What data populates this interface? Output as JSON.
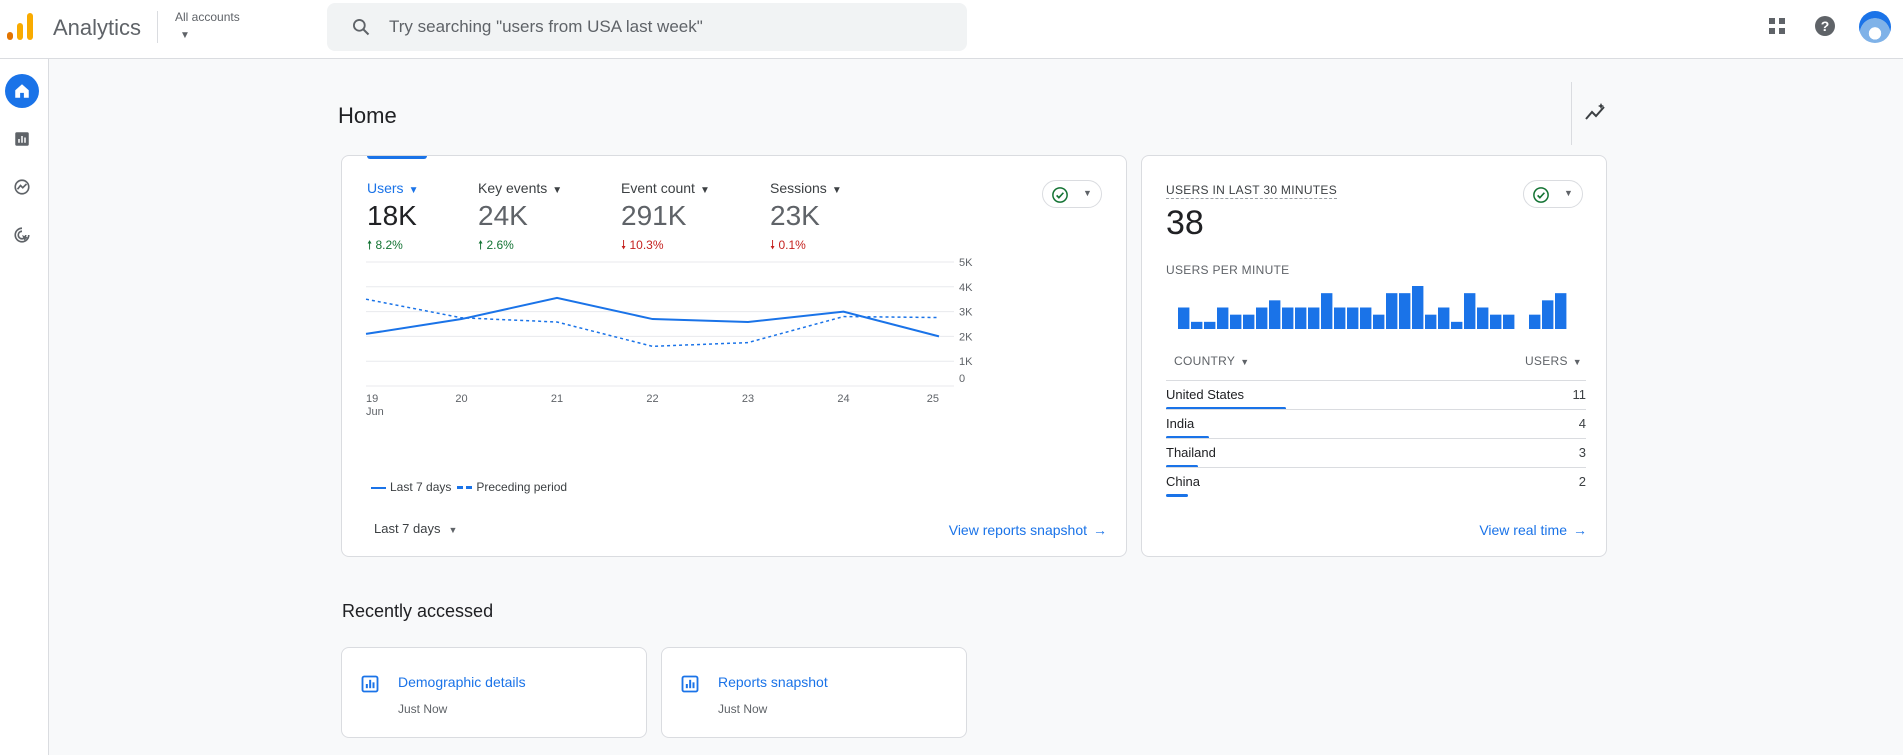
{
  "header": {
    "app_name": "Analytics",
    "account_selector": "All accounts",
    "search_placeholder": "Try searching \"users from USA last week\""
  },
  "colors": {
    "accent": "#1a73e8",
    "up": "#137333",
    "down": "#c5221f",
    "logo_orange": "#f9ab00",
    "logo_dark": "#e37400"
  },
  "icons": {
    "left_nav": [
      "home-icon",
      "reports-icon",
      "explore-icon",
      "advertising-icon"
    ],
    "top_right": [
      "apps-grid-icon",
      "help-icon",
      "avatar"
    ]
  },
  "page": {
    "title": "Home"
  },
  "metrics": [
    {
      "label": "Users",
      "value": "18K",
      "delta": "8.2%",
      "direction": "up",
      "selected": true
    },
    {
      "label": "Key events",
      "value": "24K",
      "delta": "2.6%",
      "direction": "up",
      "selected": false
    },
    {
      "label": "Event count",
      "value": "291K",
      "delta": "10.3%",
      "direction": "down",
      "selected": false
    },
    {
      "label": "Sessions",
      "value": "23K",
      "delta": "0.1%",
      "direction": "down",
      "selected": false
    }
  ],
  "chart_data": {
    "type": "line",
    "x": [
      "19",
      "20",
      "21",
      "22",
      "23",
      "24",
      "25"
    ],
    "x_sublabel": "Jun",
    "y_ticks": [
      "5K",
      "4K",
      "3K",
      "2K",
      "1K",
      "0"
    ],
    "ylim": [
      0,
      5000
    ],
    "series": [
      {
        "name": "Last 7 days",
        "style": "solid",
        "values": [
          2100,
          2700,
          3550,
          2700,
          2580,
          3000,
          2000
        ]
      },
      {
        "name": "Preceding period",
        "style": "dashed",
        "values": [
          3500,
          2750,
          2580,
          1600,
          1750,
          2800,
          2760
        ]
      }
    ],
    "grid": true,
    "legend_position": "bottom-left"
  },
  "main_card": {
    "legend_current": "Last 7 days",
    "legend_previous": "Preceding period",
    "date_range": "Last 7 days",
    "view_link": "View reports snapshot"
  },
  "realtime": {
    "title": "USERS IN LAST 30 MINUTES",
    "count": "38",
    "per_minute_label": "USERS PER MINUTE",
    "per_minute": [
      3,
      1,
      1,
      3,
      2,
      2,
      3,
      4,
      3,
      3,
      3,
      5,
      3,
      3,
      3,
      2,
      5,
      5,
      6,
      2,
      3,
      1,
      5,
      3,
      2,
      2,
      0,
      2,
      4,
      5
    ],
    "country_header": "COUNTRY",
    "users_header": "USERS",
    "countries": [
      {
        "name": "United States",
        "users": "11",
        "share": 1.0
      },
      {
        "name": "India",
        "users": "4",
        "share": 0.36
      },
      {
        "name": "Thailand",
        "users": "3",
        "share": 0.27
      },
      {
        "name": "China",
        "users": "2",
        "share": 0.18
      }
    ],
    "view_link": "View real time"
  },
  "recent": {
    "title": "Recently accessed",
    "items": [
      {
        "title": "Demographic details",
        "time": "Just Now"
      },
      {
        "title": "Reports snapshot",
        "time": "Just Now"
      }
    ]
  }
}
